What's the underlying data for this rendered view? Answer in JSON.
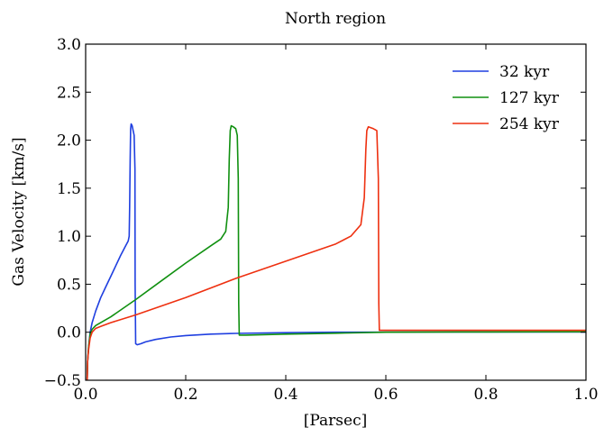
{
  "chart_data": {
    "type": "line",
    "title": "North region",
    "xlabel": "[Parsec]",
    "ylabel": "Gas Velocity [km/s]",
    "xlim": [
      0.0,
      1.0
    ],
    "ylim": [
      -0.5,
      3.0
    ],
    "x_ticks": [
      0.0,
      0.2,
      0.4,
      0.6,
      0.8,
      1.0
    ],
    "x_tick_labels": [
      "0.0",
      "0.2",
      "0.4",
      "0.6",
      "0.8",
      "1.0"
    ],
    "y_ticks": [
      -0.5,
      0.0,
      0.5,
      1.0,
      1.5,
      2.0,
      2.5,
      3.0
    ],
    "y_tick_labels": [
      "−0.5",
      "0.0",
      "0.5",
      "1.0",
      "1.5",
      "2.0",
      "2.5",
      "3.0"
    ],
    "grid": false,
    "legend_position": "top-right",
    "series": [
      {
        "name": "32 kyr",
        "color": "#1f3fe0",
        "points": [
          [
            0.003,
            -0.5
          ],
          [
            0.004,
            -0.3
          ],
          [
            0.006,
            -0.15
          ],
          [
            0.009,
            0.0
          ],
          [
            0.013,
            0.1
          ],
          [
            0.02,
            0.22
          ],
          [
            0.03,
            0.36
          ],
          [
            0.04,
            0.47
          ],
          [
            0.05,
            0.58
          ],
          [
            0.06,
            0.69
          ],
          [
            0.07,
            0.8
          ],
          [
            0.08,
            0.9
          ],
          [
            0.085,
            0.95
          ],
          [
            0.087,
            1.0
          ],
          [
            0.088,
            1.3
          ],
          [
            0.089,
            1.8
          ],
          [
            0.09,
            2.12
          ],
          [
            0.091,
            2.17
          ],
          [
            0.093,
            2.15
          ],
          [
            0.095,
            2.1
          ],
          [
            0.097,
            2.05
          ],
          [
            0.0985,
            1.7
          ],
          [
            0.099,
            0.5
          ],
          [
            0.1,
            -0.12
          ],
          [
            0.103,
            -0.13
          ],
          [
            0.11,
            -0.12
          ],
          [
            0.12,
            -0.1
          ],
          [
            0.14,
            -0.075
          ],
          [
            0.17,
            -0.05
          ],
          [
            0.2,
            -0.035
          ],
          [
            0.25,
            -0.02
          ],
          [
            0.3,
            -0.012
          ],
          [
            0.4,
            -0.005
          ],
          [
            0.5,
            0.0
          ],
          [
            0.7,
            0.002
          ],
          [
            1.0,
            0.003
          ]
        ]
      },
      {
        "name": "127 kyr",
        "color": "#109010",
        "points": [
          [
            0.003,
            -0.5
          ],
          [
            0.004,
            -0.3
          ],
          [
            0.006,
            -0.15
          ],
          [
            0.009,
            -0.02
          ],
          [
            0.013,
            0.03
          ],
          [
            0.02,
            0.07
          ],
          [
            0.03,
            0.1
          ],
          [
            0.05,
            0.16
          ],
          [
            0.1,
            0.34
          ],
          [
            0.15,
            0.53
          ],
          [
            0.2,
            0.72
          ],
          [
            0.25,
            0.9
          ],
          [
            0.27,
            0.97
          ],
          [
            0.28,
            1.05
          ],
          [
            0.285,
            1.3
          ],
          [
            0.287,
            1.8
          ],
          [
            0.289,
            2.1
          ],
          [
            0.291,
            2.15
          ],
          [
            0.295,
            2.14
          ],
          [
            0.3,
            2.12
          ],
          [
            0.303,
            2.05
          ],
          [
            0.305,
            1.6
          ],
          [
            0.306,
            0.3
          ],
          [
            0.307,
            -0.03
          ],
          [
            0.32,
            -0.03
          ],
          [
            0.4,
            -0.02
          ],
          [
            0.5,
            -0.01
          ],
          [
            0.6,
            0.0
          ],
          [
            0.8,
            0.003
          ],
          [
            1.0,
            0.005
          ]
        ]
      },
      {
        "name": "254 kyr",
        "color": "#ee3010",
        "points": [
          [
            0.003,
            -0.5
          ],
          [
            0.004,
            -0.3
          ],
          [
            0.006,
            -0.18
          ],
          [
            0.009,
            -0.06
          ],
          [
            0.013,
            0.0
          ],
          [
            0.02,
            0.04
          ],
          [
            0.03,
            0.06
          ],
          [
            0.05,
            0.1
          ],
          [
            0.1,
            0.18
          ],
          [
            0.2,
            0.36
          ],
          [
            0.3,
            0.56
          ],
          [
            0.4,
            0.74
          ],
          [
            0.5,
            0.92
          ],
          [
            0.53,
            1.0
          ],
          [
            0.55,
            1.12
          ],
          [
            0.557,
            1.4
          ],
          [
            0.56,
            1.9
          ],
          [
            0.562,
            2.1
          ],
          [
            0.565,
            2.14
          ],
          [
            0.575,
            2.12
          ],
          [
            0.582,
            2.1
          ],
          [
            0.585,
            1.6
          ],
          [
            0.586,
            0.3
          ],
          [
            0.587,
            0.02
          ],
          [
            0.7,
            0.02
          ],
          [
            0.85,
            0.02
          ],
          [
            1.0,
            0.02
          ]
        ]
      }
    ]
  }
}
